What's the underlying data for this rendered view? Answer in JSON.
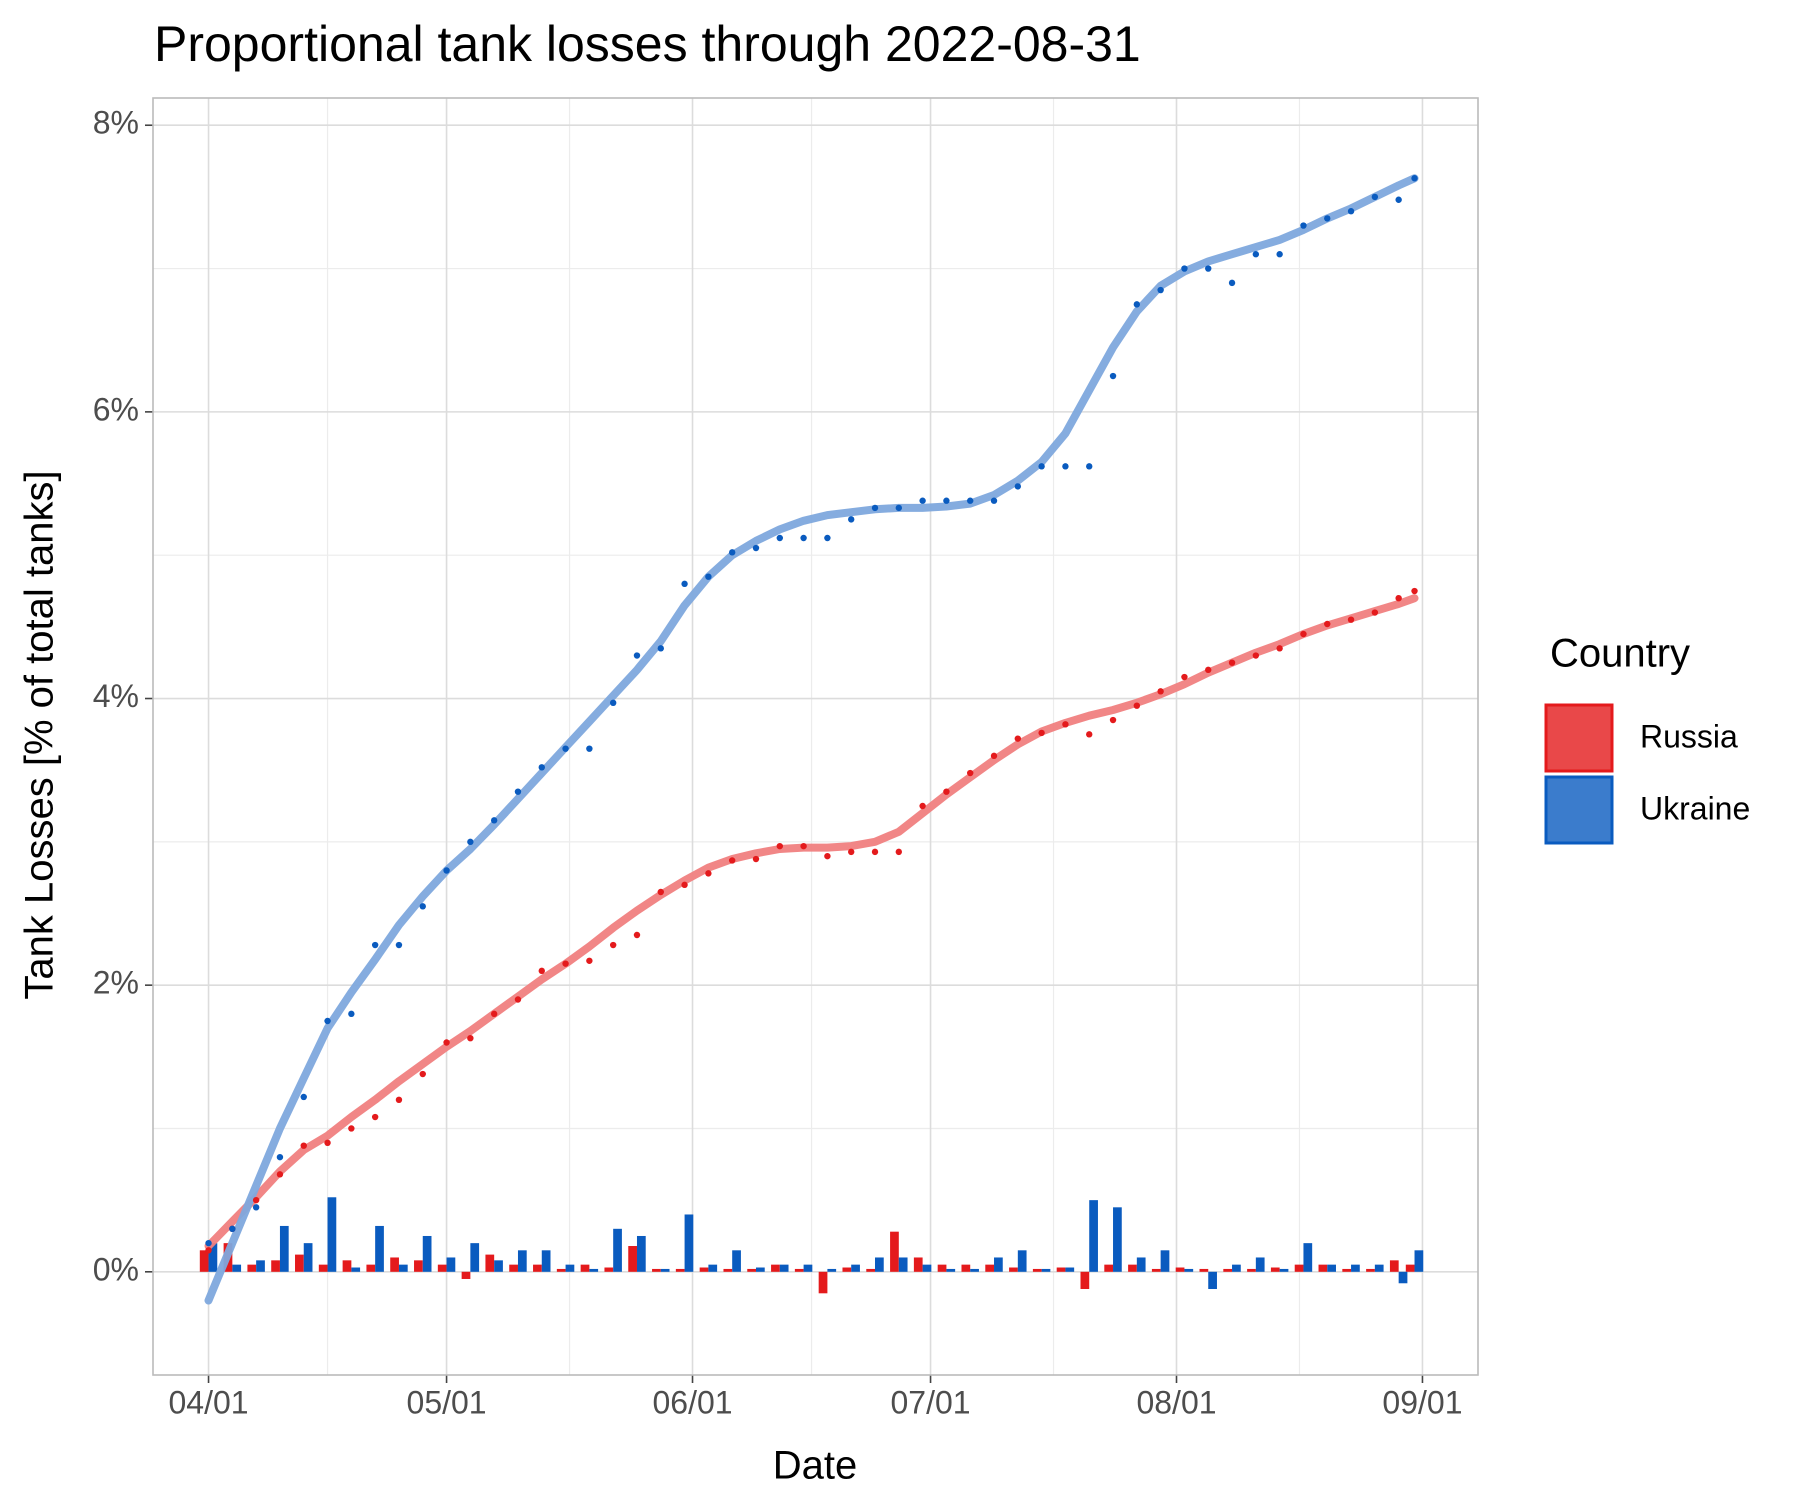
{
  "chart_data": {
    "type": "line-scatter-bar",
    "title": "Proportional tank losses through 2022-08-31",
    "x_label": "Date",
    "y_label": "Tank Losses [% of total tanks]",
    "legend_title": "Country",
    "legend_position": "right",
    "grid": true,
    "x": [
      "04/01",
      "04/04",
      "04/07",
      "04/10",
      "04/13",
      "04/16",
      "04/19",
      "04/22",
      "04/25",
      "04/28",
      "05/01",
      "05/04",
      "05/07",
      "05/10",
      "05/13",
      "05/16",
      "05/19",
      "05/22",
      "05/25",
      "05/28",
      "05/31",
      "06/03",
      "06/06",
      "06/09",
      "06/12",
      "06/15",
      "06/18",
      "06/21",
      "06/24",
      "06/27",
      "06/30",
      "07/03",
      "07/06",
      "07/09",
      "07/12",
      "07/15",
      "07/18",
      "07/21",
      "07/24",
      "07/27",
      "07/30",
      "08/02",
      "08/05",
      "08/08",
      "08/11",
      "08/14",
      "08/17",
      "08/20",
      "08/23",
      "08/26",
      "08/29",
      "08/31"
    ],
    "xlim": [
      "03/25",
      "09/08"
    ],
    "xticks": [
      "04/01",
      "05/01",
      "06/01",
      "07/01",
      "08/01",
      "09/01"
    ],
    "ylim": [
      -0.72,
      8.19
    ],
    "yticks": [
      {
        "value": 0,
        "label": "0%"
      },
      {
        "value": 2,
        "label": "2%"
      },
      {
        "value": 4,
        "label": "4%"
      },
      {
        "value": 6,
        "label": "6%"
      },
      {
        "value": 8,
        "label": "8%"
      }
    ],
    "series": [
      {
        "name": "Russia",
        "color": "#e41a1c",
        "trend_color": "#f08080",
        "values": [
          0.15,
          0.3,
          0.5,
          0.68,
          0.88,
          0.9,
          1.0,
          1.08,
          1.2,
          1.38,
          1.6,
          1.63,
          1.8,
          1.9,
          2.1,
          2.15,
          2.17,
          2.28,
          2.35,
          2.65,
          2.7,
          2.78,
          2.87,
          2.88,
          2.97,
          2.97,
          2.9,
          2.93,
          2.93,
          2.93,
          3.25,
          3.35,
          3.48,
          3.6,
          3.72,
          3.76,
          3.82,
          3.75,
          3.85,
          3.95,
          4.05,
          4.15,
          4.2,
          4.25,
          4.3,
          4.35,
          4.45,
          4.52,
          4.55,
          4.6,
          4.7,
          4.75
        ],
        "daily": [
          0.15,
          0.2,
          0.05,
          0.08,
          0.12,
          0.05,
          0.08,
          0.05,
          0.1,
          0.08,
          0.05,
          -0.05,
          0.12,
          0.05,
          0.05,
          0.02,
          0.05,
          0.03,
          0.18,
          0.02,
          0.02,
          0.03,
          0.02,
          0.02,
          0.05,
          0.02,
          -0.15,
          0.03,
          0.02,
          0.28,
          0.1,
          0.05,
          0.05,
          0.05,
          0.03,
          0.02,
          0.03,
          -0.12,
          0.05,
          0.05,
          0.02,
          0.03,
          0.02,
          0.02,
          0.02,
          0.03,
          0.05,
          0.05,
          0.02,
          0.02,
          0.08,
          0.05
        ],
        "trend": [
          0.18,
          0.35,
          0.52,
          0.7,
          0.85,
          0.95,
          1.08,
          1.2,
          1.33,
          1.45,
          1.57,
          1.68,
          1.8,
          1.92,
          2.04,
          2.15,
          2.27,
          2.4,
          2.52,
          2.63,
          2.73,
          2.82,
          2.88,
          2.92,
          2.95,
          2.96,
          2.96,
          2.97,
          3.0,
          3.07,
          3.2,
          3.33,
          3.45,
          3.57,
          3.68,
          3.77,
          3.83,
          3.88,
          3.92,
          3.97,
          4.03,
          4.1,
          4.18,
          4.25,
          4.32,
          4.38,
          4.45,
          4.51,
          4.56,
          4.61,
          4.66,
          4.7
        ]
      },
      {
        "name": "Ukraine",
        "color": "#0a5bbf",
        "trend_color": "#7ea8dd",
        "values": [
          0.2,
          0.3,
          0.45,
          0.8,
          1.22,
          1.75,
          1.8,
          2.28,
          2.28,
          2.55,
          2.8,
          3.0,
          3.15,
          3.35,
          3.52,
          3.65,
          3.65,
          3.97,
          4.3,
          4.35,
          4.8,
          4.85,
          5.02,
          5.05,
          5.12,
          5.12,
          5.12,
          5.25,
          5.33,
          5.33,
          5.38,
          5.38,
          5.38,
          5.38,
          5.48,
          5.62,
          5.62,
          5.62,
          6.25,
          6.75,
          6.85,
          7.0,
          7.0,
          6.9,
          7.1,
          7.1,
          7.3,
          7.35,
          7.4,
          7.5,
          7.48,
          7.63
        ],
        "daily": [
          0.2,
          0.05,
          0.08,
          0.32,
          0.2,
          0.52,
          0.03,
          0.32,
          0.05,
          0.25,
          0.1,
          0.2,
          0.08,
          0.15,
          0.15,
          0.05,
          0.02,
          0.3,
          0.25,
          0.02,
          0.4,
          0.05,
          0.15,
          0.03,
          0.05,
          0.05,
          0.02,
          0.05,
          0.1,
          0.1,
          0.05,
          0.02,
          0.02,
          0.1,
          0.15,
          0.02,
          0.03,
          0.5,
          0.45,
          0.1,
          0.15,
          0.02,
          -0.12,
          0.05,
          0.1,
          0.02,
          0.2,
          0.05,
          0.05,
          0.05,
          -0.08,
          0.15
        ],
        "trend": [
          -0.2,
          0.2,
          0.6,
          1.0,
          1.35,
          1.7,
          1.95,
          2.18,
          2.42,
          2.62,
          2.8,
          2.95,
          3.12,
          3.3,
          3.48,
          3.66,
          3.84,
          4.02,
          4.2,
          4.4,
          4.65,
          4.85,
          5.0,
          5.1,
          5.18,
          5.24,
          5.28,
          5.3,
          5.32,
          5.33,
          5.33,
          5.34,
          5.36,
          5.42,
          5.52,
          5.65,
          5.85,
          6.15,
          6.45,
          6.7,
          6.88,
          6.98,
          7.05,
          7.1,
          7.15,
          7.2,
          7.27,
          7.35,
          7.42,
          7.5,
          7.58,
          7.63
        ]
      }
    ]
  }
}
